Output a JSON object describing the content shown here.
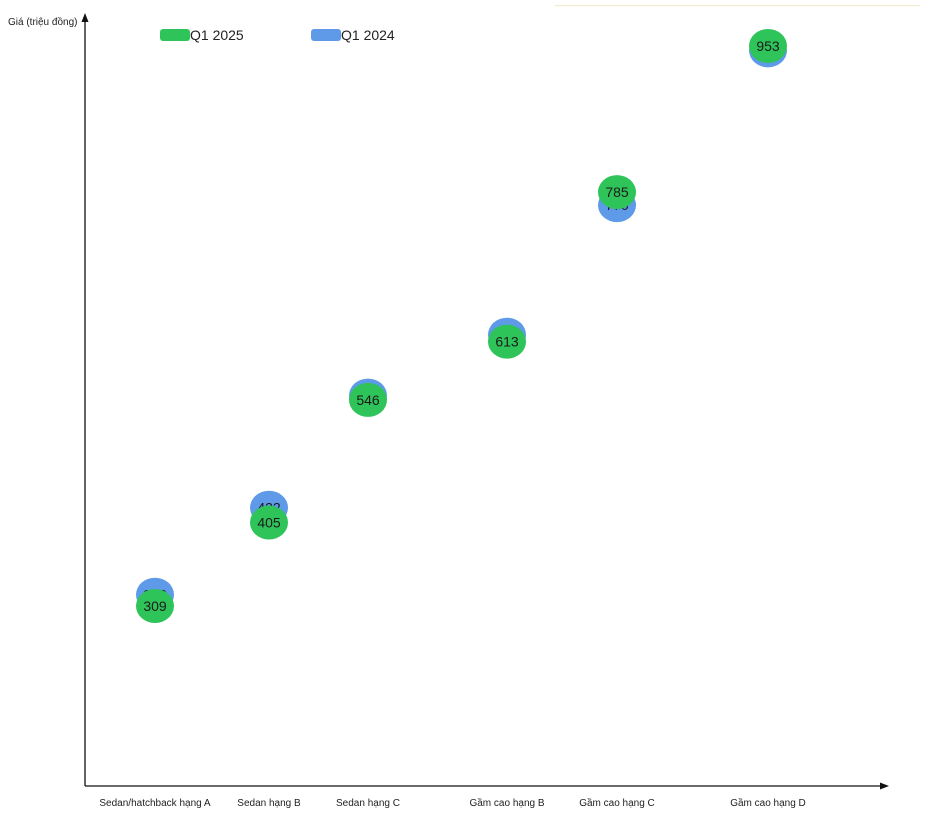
{
  "chart_data": {
    "type": "dumbbell",
    "ylabel": "Giá (triệu đồng)",
    "xlabel": "",
    "categories": [
      "Sedan/hatchback hạng A",
      "Sedan hạng B",
      "Sedan hạng C",
      "Gầm cao hạng B",
      "Gầm cao hạng C",
      "Gầm cao hạng D"
    ],
    "series": [
      {
        "name": "Q1 2025",
        "color": "#2ec45a",
        "values": [
          309,
          405,
          546,
          613,
          785,
          953
        ]
      },
      {
        "name": "Q1 2024",
        "color": "#5f9ae8",
        "values": [
          322,
          422,
          551,
          621,
          770,
          948
        ]
      }
    ],
    "decrease_color": "#ff6464",
    "increase_color": "#b8edc8",
    "legend_position": "top-left",
    "grid": false
  }
}
